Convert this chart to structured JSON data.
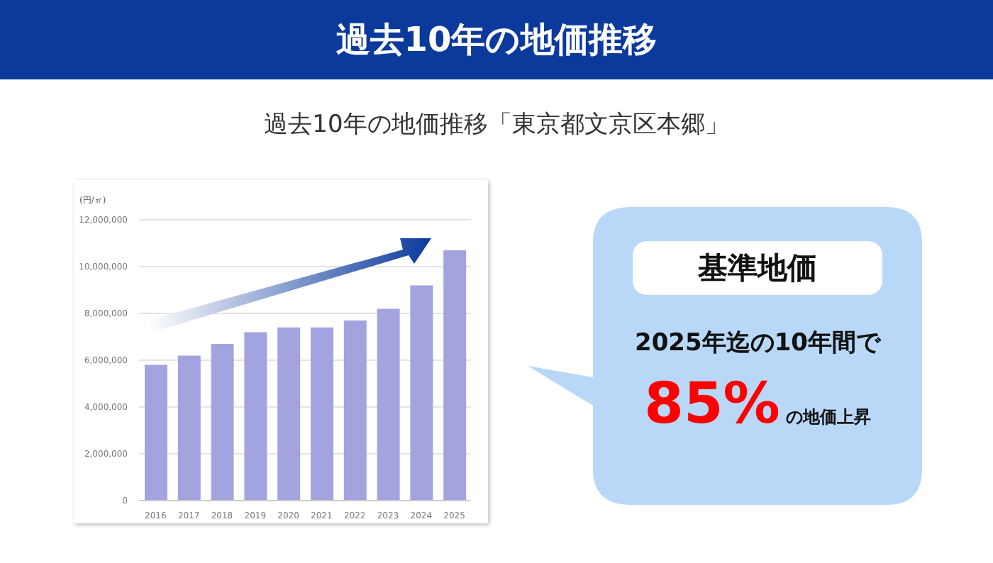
{
  "chart_data": {
    "type": "bar",
    "title": "過去10年の地価推移",
    "subtitle": "過去10年の地価推移「東京都文京区本郷」",
    "ylabel": "(円/㎡)",
    "categories": [
      "2016",
      "2017",
      "2018",
      "2019",
      "2020",
      "2021",
      "2022",
      "2023",
      "2024",
      "2025"
    ],
    "values": [
      5800000,
      6200000,
      6700000,
      7200000,
      7400000,
      7400000,
      7700000,
      8200000,
      9200000,
      10700000
    ],
    "color": "#a3a3e0",
    "ylim": [
      0,
      12000000
    ],
    "yticks": [
      0,
      {
        "value": 2000000,
        "label": "2,000,000"
      },
      {
        "value": 4000000,
        "label": "4,000,000"
      },
      {
        "value": 6000000,
        "label": "6,000,000"
      },
      {
        "value": 8000000,
        "label": "8,000,000"
      },
      {
        "value": 10000000,
        "label": "10,000,000"
      },
      {
        "value": 12000000,
        "label": "12,000,000"
      }
    ],
    "grid": "y",
    "annotations": [
      "基準地価",
      "2025年迄の10年間で",
      "85%",
      "の地価上昇"
    ]
  }
}
